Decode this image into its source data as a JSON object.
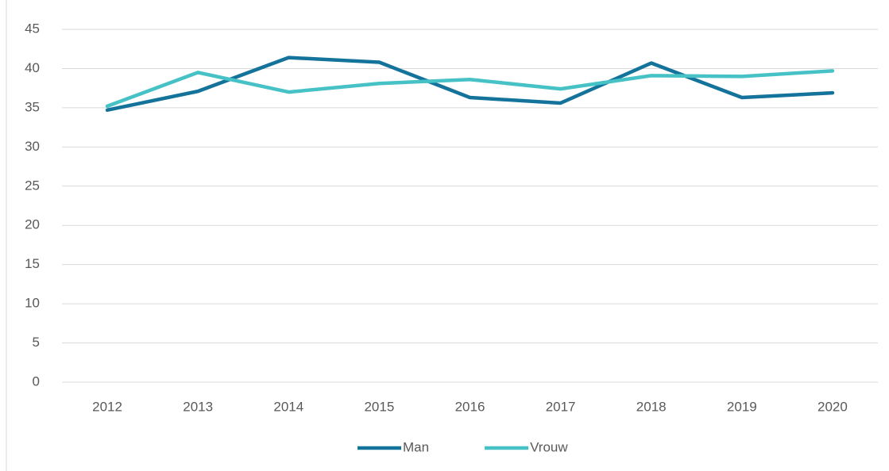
{
  "chart_data": {
    "type": "line",
    "categories": [
      "2012",
      "2013",
      "2014",
      "2015",
      "2016",
      "2017",
      "2018",
      "2019",
      "2020"
    ],
    "series": [
      {
        "name": "Man",
        "color": "#14739b",
        "values": [
          34.7,
          37.1,
          41.4,
          40.8,
          36.3,
          35.6,
          40.7,
          36.3,
          36.9
        ]
      },
      {
        "name": "Vrouw",
        "color": "#46c2c6",
        "values": [
          35.2,
          39.5,
          37.0,
          38.1,
          38.6,
          37.4,
          39.1,
          39.0,
          39.7
        ]
      }
    ],
    "ylim": [
      0,
      45
    ],
    "yticks": [
      0,
      5,
      10,
      15,
      20,
      25,
      30,
      35,
      40,
      45
    ],
    "grid": true,
    "legend": "bottom"
  }
}
